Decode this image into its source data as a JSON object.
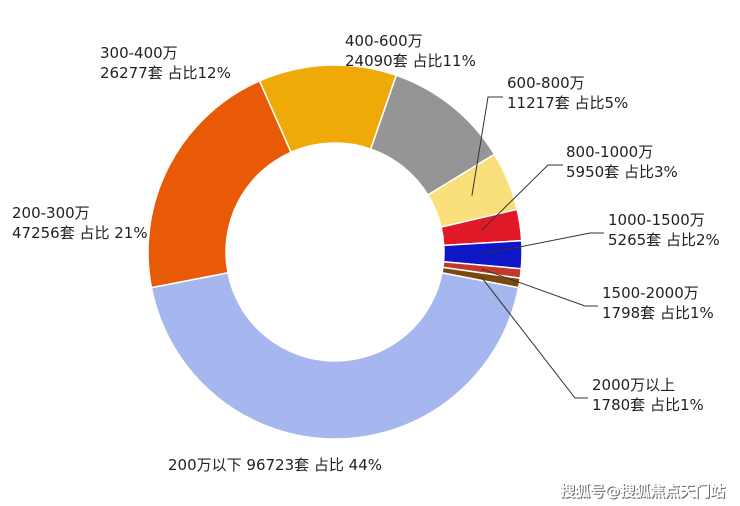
{
  "chart_data": {
    "type": "pie",
    "variant": "donut",
    "title": "",
    "categories": [
      "200万以下",
      "200-300万",
      "300-400万",
      "400-600万",
      "600-800万",
      "800-1000万",
      "1000-1500万",
      "1500-2000万",
      "2000万以上"
    ],
    "counts": [
      96723,
      47256,
      26277,
      24090,
      11217,
      5950,
      5265,
      1798,
      1780
    ],
    "percent_labels": [
      "44%",
      "21%",
      "12%",
      "11%",
      "5%",
      "3%",
      "2%",
      "1%",
      "1%"
    ],
    "colors": [
      "#a6b7ef",
      "#e85a05",
      "#f0aa07",
      "#959595",
      "#f9e07a",
      "#e01828",
      "#0f16c6",
      "#c0392b",
      "#7a4a0c"
    ],
    "labels": [
      {
        "line1": "200万以下 96723套 占比 44%",
        "line2": ""
      },
      {
        "line1": "200-300万",
        "line2": "47256套 占比 21%"
      },
      {
        "line1": "300-400万",
        "line2": "26277套 占比12%"
      },
      {
        "line1": "400-600万",
        "line2": "24090套 占比11%"
      },
      {
        "line1": "600-800万",
        "line2": "11217套 占比5%"
      },
      {
        "line1": "800-1000万",
        "line2": "5950套 占比3%"
      },
      {
        "line1": "1000-1500万",
        "line2": "5265套 占比2%"
      },
      {
        "line1": "1500-2000万",
        "line2": "1798套 占比1%"
      },
      {
        "line1": "2000万以上",
        "line2": "1780套 占比1%"
      }
    ]
  },
  "watermark": "搜狐号@搜狐焦点天门站"
}
